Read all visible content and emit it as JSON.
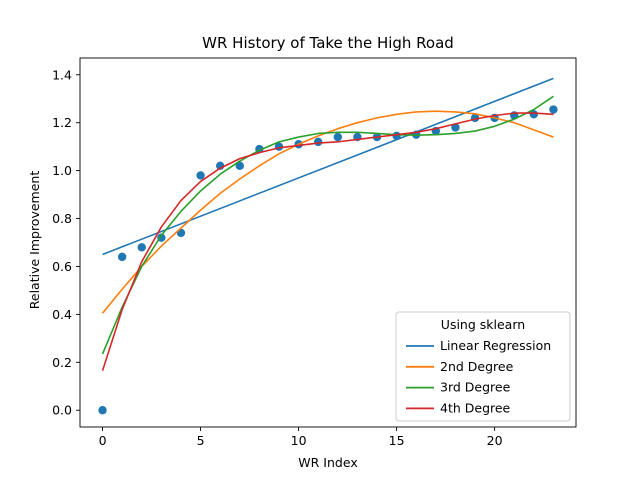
{
  "chart_data": {
    "type": "scatter",
    "title": "WR History of Take the High Road",
    "xlabel": "WR Index",
    "ylabel": "Relative Improvement",
    "xlim": [
      -1.15,
      24.15
    ],
    "ylim": [
      -0.07,
      1.47
    ],
    "xticks": [
      0,
      5,
      10,
      15,
      20
    ],
    "yticks": [
      0.0,
      0.2,
      0.4,
      0.6,
      0.8,
      1.0,
      1.2,
      1.4
    ],
    "xtick_labels": [
      "0",
      "5",
      "10",
      "15",
      "20"
    ],
    "ytick_labels": [
      "0.0",
      "0.2",
      "0.4",
      "0.6",
      "0.8",
      "1.0",
      "1.2",
      "1.4"
    ],
    "grid": false,
    "legend": {
      "title": "Using sklearn",
      "placement": "lower-right",
      "entries": [
        "Linear Regression",
        "2nd Degree",
        "3rd Degree",
        "4th Degree"
      ]
    },
    "points": {
      "color": "#1f77b4",
      "x": [
        0,
        1,
        2,
        3,
        4,
        5,
        6,
        7,
        8,
        9,
        10,
        11,
        12,
        13,
        14,
        15,
        16,
        17,
        18,
        19,
        20,
        21,
        22,
        23
      ],
      "y": [
        0.0,
        0.64,
        0.68,
        0.72,
        0.74,
        0.98,
        1.02,
        1.02,
        1.09,
        1.1,
        1.11,
        1.12,
        1.14,
        1.14,
        1.14,
        1.145,
        1.15,
        1.165,
        1.18,
        1.22,
        1.22,
        1.23,
        1.235,
        1.255
      ]
    },
    "series": [
      {
        "name": "Linear Regression",
        "color": "#1f77b4",
        "x": [
          0,
          23
        ],
        "y": [
          0.65,
          1.385
        ]
      },
      {
        "name": "2nd Degree",
        "color": "#ff7f0e",
        "x": [
          0,
          1,
          2,
          3,
          4,
          5,
          6,
          7,
          8,
          9,
          10,
          11,
          12,
          13,
          14,
          15,
          16,
          17,
          18,
          19,
          20,
          21,
          22,
          23
        ],
        "y": [
          0.405,
          0.505,
          0.6,
          0.685,
          0.76,
          0.835,
          0.905,
          0.965,
          1.02,
          1.07,
          1.11,
          1.145,
          1.175,
          1.2,
          1.22,
          1.235,
          1.245,
          1.248,
          1.245,
          1.237,
          1.22,
          1.2,
          1.17,
          1.14
        ]
      },
      {
        "name": "3rd Degree",
        "color": "#2ca02c",
        "x": [
          0,
          1,
          2,
          3,
          4,
          5,
          6,
          7,
          8,
          9,
          10,
          11,
          12,
          13,
          14,
          15,
          16,
          17,
          18,
          19,
          20,
          21,
          22,
          23
        ],
        "y": [
          0.235,
          0.43,
          0.6,
          0.73,
          0.83,
          0.915,
          0.985,
          1.04,
          1.085,
          1.12,
          1.14,
          1.155,
          1.16,
          1.16,
          1.155,
          1.15,
          1.148,
          1.15,
          1.155,
          1.165,
          1.185,
          1.215,
          1.255,
          1.31
        ]
      },
      {
        "name": "4th Degree",
        "color": "#d62728",
        "x": [
          0,
          1,
          2,
          3,
          4,
          5,
          6,
          7,
          8,
          9,
          10,
          11,
          12,
          13,
          14,
          15,
          16,
          17,
          18,
          19,
          20,
          21,
          22,
          23
        ],
        "y": [
          0.165,
          0.42,
          0.62,
          0.765,
          0.875,
          0.955,
          1.01,
          1.05,
          1.075,
          1.095,
          1.105,
          1.115,
          1.12,
          1.13,
          1.14,
          1.15,
          1.16,
          1.175,
          1.195,
          1.215,
          1.23,
          1.24,
          1.24,
          1.235
        ]
      }
    ]
  }
}
